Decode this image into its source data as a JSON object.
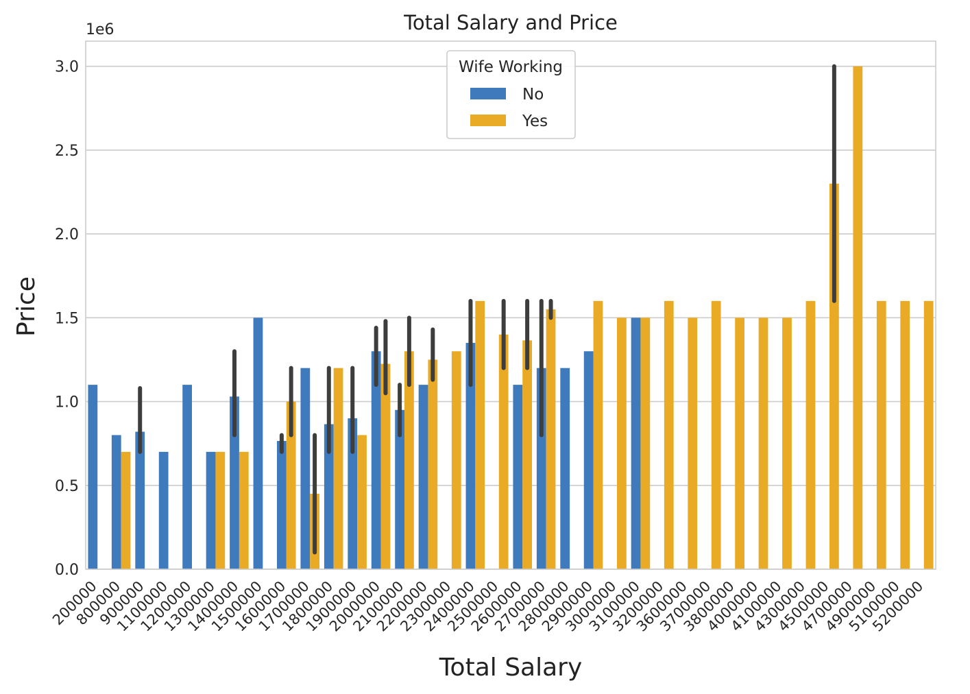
{
  "chart_data": {
    "type": "bar",
    "title": "Total Salary and Price",
    "xlabel": "Total Salary",
    "ylabel": "Price",
    "y_offset_label": "1e6",
    "ylim": [
      0,
      3150000
    ],
    "yticks": [
      "0.0",
      "0.5",
      "1.0",
      "1.5",
      "2.0",
      "2.5",
      "3.0"
    ],
    "ytick_values": [
      0,
      500000,
      1000000,
      1500000,
      2000000,
      2500000,
      3000000
    ],
    "grid": true,
    "legend": {
      "title": "Wife Working",
      "placement": "upper-center"
    },
    "colors": {
      "No": "#3f7abd",
      "Yes": "#e9ab25",
      "error": "#3d3d3d"
    },
    "categories": [
      "200000",
      "800000",
      "900000",
      "1100000",
      "1200000",
      "1300000",
      "1400000",
      "1500000",
      "1600000",
      "1700000",
      "1800000",
      "1900000",
      "2000000",
      "2100000",
      "2200000",
      "2300000",
      "2400000",
      "2500000",
      "2600000",
      "2700000",
      "2800000",
      "2900000",
      "3000000",
      "3100000",
      "3200000",
      "3600000",
      "3700000",
      "3800000",
      "4000000",
      "4100000",
      "4300000",
      "4500000",
      "4700000",
      "4900000",
      "5100000",
      "5200000"
    ],
    "series": [
      {
        "name": "No",
        "values": [
          1100000,
          800000,
          820000,
          700000,
          1100000,
          700000,
          1030000,
          1500000,
          765000,
          1200000,
          865000,
          900000,
          1300000,
          950000,
          1100000,
          null,
          1350000,
          null,
          1100000,
          1200000,
          1200000,
          1300000,
          null,
          1500000,
          null,
          null,
          null,
          null,
          null,
          null,
          null,
          null,
          null,
          null,
          null,
          null
        ],
        "ci": [
          null,
          null,
          [
            700000,
            1080000
          ],
          null,
          null,
          null,
          [
            800000,
            1300000
          ],
          null,
          [
            700000,
            800000
          ],
          null,
          [
            700000,
            1200000
          ],
          [
            700000,
            1200000
          ],
          [
            1100000,
            1440000
          ],
          [
            800000,
            1100000
          ],
          null,
          null,
          [
            1100000,
            1600000
          ],
          null,
          null,
          [
            800000,
            1600000
          ],
          null,
          null,
          null,
          null,
          null,
          null,
          null,
          null,
          null,
          null,
          null,
          null,
          null,
          null,
          null,
          null
        ]
      },
      {
        "name": "Yes",
        "values": [
          null,
          700000,
          null,
          null,
          null,
          700000,
          700000,
          null,
          1000000,
          450000,
          1200000,
          800000,
          1225000,
          1300000,
          1250000,
          1300000,
          1600000,
          1400000,
          1365000,
          1550000,
          null,
          1600000,
          1500000,
          1500000,
          1600000,
          1500000,
          1600000,
          1500000,
          1500000,
          1500000,
          1600000,
          2300000,
          3000000,
          1600000,
          1600000,
          1600000
        ],
        "ci": [
          null,
          null,
          null,
          null,
          null,
          null,
          null,
          null,
          [
            800000,
            1200000
          ],
          [
            100000,
            800000
          ],
          null,
          null,
          [
            1050000,
            1480000
          ],
          [
            1100000,
            1500000
          ],
          [
            1130000,
            1430000
          ],
          null,
          null,
          [
            1200000,
            1600000
          ],
          [
            1200000,
            1600000
          ],
          [
            1500000,
            1600000
          ],
          null,
          null,
          null,
          null,
          null,
          null,
          null,
          null,
          null,
          null,
          null,
          [
            1600000,
            3000000
          ],
          null,
          null,
          null,
          null
        ]
      }
    ]
  }
}
